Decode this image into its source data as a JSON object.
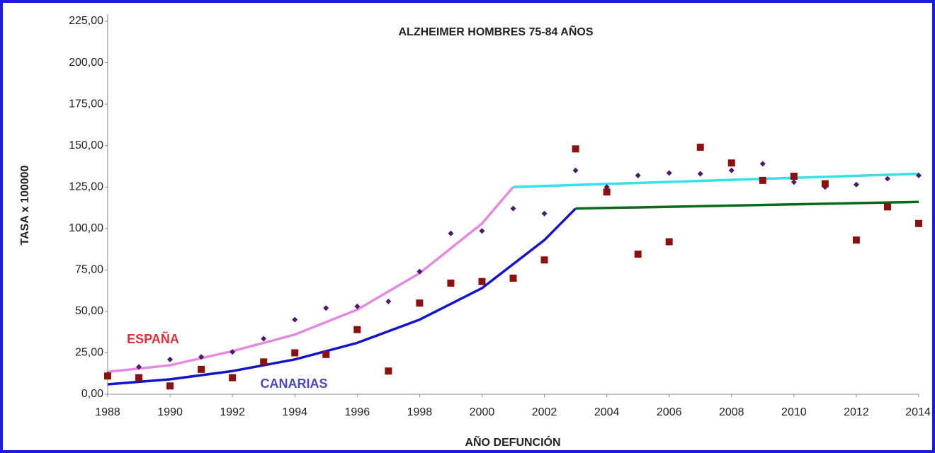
{
  "chart_data": {
    "type": "scatter",
    "title": "ALZHEIMER HOMBRES 75-84 AÑOS",
    "y_label": "TASA x 100000",
    "x_label": "AÑO DEFUNCIÓN",
    "annotations": [
      "ESPAÑA",
      "CANARIAS"
    ],
    "annotation_colors": [
      "#e0303a",
      "#4a4ac0"
    ],
    "x": [
      1988,
      1989,
      1990,
      1991,
      1992,
      1993,
      1994,
      1995,
      1996,
      1997,
      1998,
      1999,
      2000,
      2001,
      2002,
      2003,
      2004,
      2005,
      2006,
      2007,
      2008,
      2009,
      2010,
      2011,
      2012,
      2013,
      2014
    ],
    "series": [
      {
        "marker": "diamond",
        "color": "#4b1a6e",
        "values": [
          12,
          16.5,
          21,
          22.5,
          25.5,
          33.5,
          45,
          52,
          53,
          56,
          74,
          97,
          98.5,
          112,
          109,
          135,
          125,
          132,
          133.5,
          133,
          135,
          139,
          128,
          125,
          126.5,
          130,
          132
        ]
      },
      {
        "marker": "square",
        "color": "#8b1010",
        "values": [
          11,
          10,
          5,
          15,
          10,
          19.5,
          25,
          24,
          39,
          14,
          55,
          67,
          68,
          70,
          81,
          148,
          122,
          84.5,
          92,
          149,
          139.5,
          129,
          131.5,
          127,
          93,
          113,
          103
        ]
      }
    ],
    "lines": [
      {
        "color": "#e58ae0",
        "x": [
          1988,
          1990,
          1992,
          1994,
          1996,
          1998,
          2000,
          2001
        ],
        "values": [
          13.5,
          17.5,
          26,
          36,
          51,
          73,
          103,
          125
        ]
      },
      {
        "color": "#38e0e8",
        "x": [
          2001,
          2014
        ],
        "values": [
          125,
          133
        ]
      },
      {
        "color": "#1414c8",
        "x": [
          1988,
          1990,
          1992,
          1994,
          1996,
          1998,
          2000,
          2002,
          2003
        ],
        "values": [
          6,
          9,
          14,
          21,
          31,
          45,
          64,
          93,
          112
        ]
      },
      {
        "color": "#0a6a1a",
        "x": [
          2003,
          2014
        ],
        "values": [
          112,
          116
        ]
      }
    ],
    "xlim": [
      1988,
      2014
    ],
    "xticks": [
      1988,
      1990,
      1992,
      1994,
      1996,
      1998,
      2000,
      2002,
      2004,
      2006,
      2008,
      2010,
      2012,
      2014
    ],
    "ylim": [
      0,
      225
    ],
    "yticks": [
      {
        "value": 0,
        "label": "0,00"
      },
      {
        "value": 25,
        "label": "25,00"
      },
      {
        "value": 50,
        "label": "50,00"
      },
      {
        "value": 75,
        "label": "75,00"
      },
      {
        "value": 100,
        "label": "100,00"
      },
      {
        "value": 125,
        "label": "125,00"
      },
      {
        "value": 150,
        "label": "150,00"
      },
      {
        "value": 175,
        "label": "175,00"
      },
      {
        "value": 200,
        "label": "200,00"
      },
      {
        "value": 225,
        "label": "225,00"
      }
    ]
  }
}
